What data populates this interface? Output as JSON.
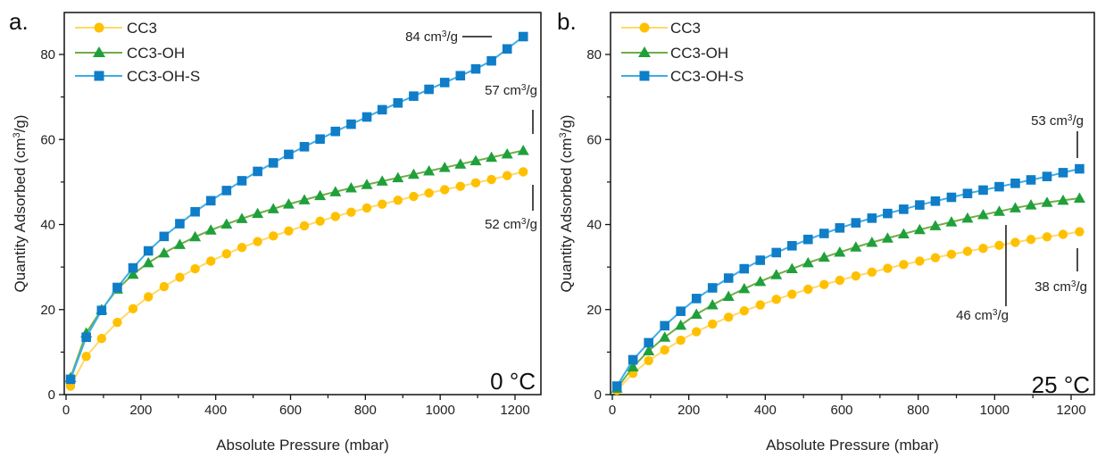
{
  "chart_data": [
    {
      "type": "line",
      "panel_label": "a.",
      "title": "",
      "condition_label": "0 °C",
      "xlabel": "Absolute Pressure (mbar)",
      "ylabel": "Quantity Adsorbed (cm³/g)",
      "ylabel_parts": {
        "main": "Quantity Adsorbed (cm",
        "sup": "3",
        "end": "/g)"
      },
      "xlim": [
        0,
        1250
      ],
      "ylim": [
        0,
        88
      ],
      "xticks": [
        0,
        200,
        400,
        600,
        800,
        1000,
        1200
      ],
      "xticks_labels": [
        "0",
        "200",
        "400",
        "600",
        "800",
        "1000",
        "1200"
      ],
      "yticks": [
        0,
        20,
        40,
        60,
        80
      ],
      "yticks_labels": [
        "0",
        "20",
        "40",
        "60",
        "80"
      ],
      "legend_position": "top-left",
      "grid": false,
      "x": [
        12,
        54,
        95,
        137,
        179,
        220,
        262,
        304,
        345,
        387,
        429,
        470,
        512,
        554,
        595,
        637,
        679,
        720,
        762,
        804,
        845,
        887,
        929,
        970,
        1012,
        1054,
        1095,
        1137,
        1179,
        1222
      ],
      "series": [
        {
          "name": "CC3",
          "color": "#FFC000",
          "line_color": "#FFD966",
          "marker": "circle",
          "values": [
            2,
            9,
            13.2,
            17,
            20.2,
            23,
            25.4,
            27.6,
            29.6,
            31.4,
            33.1,
            34.6,
            36,
            37.3,
            38.5,
            39.7,
            40.8,
            41.9,
            42.9,
            43.9,
            44.8,
            45.7,
            46.6,
            47.4,
            48.2,
            49,
            49.8,
            50.6,
            51.5,
            52.4
          ]
        },
        {
          "name": "CC3-OH",
          "color": "#1FA03B",
          "line_color": "#70AD47",
          "marker": "triangle",
          "values": [
            4,
            14.5,
            20,
            24.8,
            28.3,
            31,
            33.3,
            35.3,
            37.1,
            38.7,
            40.1,
            41.4,
            42.6,
            43.7,
            44.8,
            45.8,
            46.8,
            47.7,
            48.6,
            49.4,
            50.2,
            51,
            51.8,
            52.6,
            53.4,
            54.2,
            55,
            55.8,
            56.6,
            57.4
          ]
        },
        {
          "name": "CC3-OH-S",
          "color": "#0F7DC8",
          "line_color": "#3BAEE6",
          "marker": "square",
          "values": [
            3.6,
            13.5,
            19.8,
            25.2,
            29.8,
            33.8,
            37.2,
            40.2,
            43,
            45.6,
            48,
            50.3,
            52.5,
            54.5,
            56.5,
            58.3,
            60.1,
            61.9,
            63.6,
            65.3,
            67,
            68.6,
            70.2,
            71.8,
            73.4,
            75,
            76.6,
            78.5,
            81.3,
            84.2
          ]
        }
      ],
      "annotations": [
        {
          "text_main": "84 cm",
          "sup": "3",
          "text_end": "/g",
          "series": "CC3-OH-S",
          "value": 84
        },
        {
          "text_main": "57 cm",
          "sup": "3",
          "text_end": "/g",
          "series": "CC3-OH",
          "value": 57
        },
        {
          "text_main": "52 cm",
          "sup": "3",
          "text_end": "/g",
          "series": "CC3",
          "value": 52
        }
      ]
    },
    {
      "type": "line",
      "panel_label": "b.",
      "title": "",
      "condition_label": "25 °C",
      "xlabel": "Absolute Pressure (mbar)",
      "ylabel": "Quantity Adsorbed (cm³/g)",
      "ylabel_parts": {
        "main": "Quantity Adsorbed (cm",
        "sup": "3",
        "end": "/g)"
      },
      "xlim": [
        0,
        1250
      ],
      "ylim": [
        0,
        88
      ],
      "xticks": [
        0,
        200,
        400,
        600,
        800,
        1000,
        1200
      ],
      "xticks_labels": [
        "0",
        "200",
        "400",
        "600",
        "800",
        "1000",
        "1200"
      ],
      "yticks": [
        0,
        20,
        40,
        60,
        80
      ],
      "yticks_labels": [
        "0",
        "20",
        "40",
        "60",
        "80"
      ],
      "legend_position": "top-left",
      "grid": false,
      "x": [
        12,
        54,
        95,
        137,
        179,
        220,
        262,
        304,
        345,
        387,
        429,
        470,
        512,
        554,
        595,
        637,
        679,
        720,
        762,
        804,
        845,
        887,
        929,
        970,
        1012,
        1054,
        1095,
        1137,
        1179,
        1222
      ],
      "series": [
        {
          "name": "CC3",
          "color": "#FFC000",
          "line_color": "#FFD966",
          "marker": "circle",
          "values": [
            1,
            5,
            8,
            10.5,
            12.8,
            14.8,
            16.6,
            18.2,
            19.7,
            21.1,
            22.4,
            23.6,
            24.8,
            25.9,
            26.9,
            27.9,
            28.8,
            29.7,
            30.6,
            31.4,
            32.2,
            33,
            33.7,
            34.4,
            35.1,
            35.8,
            36.5,
            37.1,
            37.7,
            38.3
          ]
        },
        {
          "name": "CC3-OH",
          "color": "#1FA03B",
          "line_color": "#70AD47",
          "marker": "triangle",
          "values": [
            1.5,
            6.5,
            10.3,
            13.5,
            16.3,
            18.9,
            21.1,
            23.1,
            24.9,
            26.6,
            28.2,
            29.6,
            31,
            32.3,
            33.5,
            34.7,
            35.8,
            36.8,
            37.8,
            38.8,
            39.7,
            40.6,
            41.5,
            42.3,
            43.1,
            43.9,
            44.6,
            45.2,
            45.7,
            46.2
          ]
        },
        {
          "name": "CC3-OH-S",
          "color": "#0F7DC8",
          "line_color": "#3BAEE6",
          "marker": "square",
          "values": [
            2,
            8.2,
            12.2,
            16.2,
            19.6,
            22.6,
            25.1,
            27.4,
            29.6,
            31.6,
            33.4,
            35,
            36.5,
            37.9,
            39.2,
            40.4,
            41.5,
            42.6,
            43.6,
            44.6,
            45.5,
            46.4,
            47.3,
            48.1,
            48.9,
            49.7,
            50.5,
            51.3,
            52.2,
            53.1
          ]
        }
      ],
      "annotations": [
        {
          "text_main": "53 cm",
          "sup": "3",
          "text_end": "/g",
          "series": "CC3-OH-S",
          "value": 53
        },
        {
          "text_main": "46 cm",
          "sup": "3",
          "text_end": "/g",
          "series": "CC3-OH",
          "value": 46
        },
        {
          "text_main": "38 cm",
          "sup": "3",
          "text_end": "/g",
          "series": "CC3",
          "value": 38
        }
      ]
    }
  ]
}
